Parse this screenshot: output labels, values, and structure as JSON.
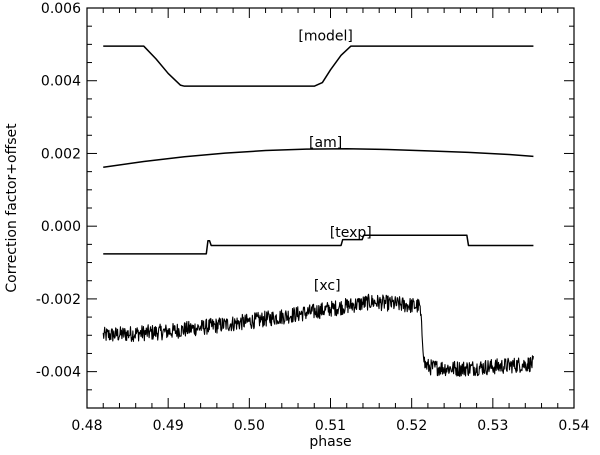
{
  "chart_data": {
    "type": "line",
    "title": "",
    "xlabel": "phase",
    "ylabel": "Correction factor+offset",
    "xlim": [
      0.48,
      0.54
    ],
    "ylim": [
      -0.005,
      0.006
    ],
    "grid": false,
    "legend": "none",
    "x_ticks": [
      0.48,
      0.49,
      0.5,
      0.51,
      0.52,
      0.53,
      0.54
    ],
    "x_tick_labels": [
      "0.48",
      "0.49",
      "0.50",
      "0.51",
      "0.52",
      "0.53",
      "0.54"
    ],
    "y_ticks": [
      -0.004,
      -0.002,
      0.0,
      0.002,
      0.004,
      0.006
    ],
    "y_tick_labels": [
      "-0.004",
      "-0.002",
      "0.000",
      "0.002",
      "0.004",
      "0.006"
    ],
    "line_color": "#000000",
    "series": [
      {
        "name": "[model]",
        "label_at": [
          0.5094,
          0.00525
        ],
        "points": [
          [
            0.482,
            0.00495
          ],
          [
            0.487,
            0.00495
          ],
          [
            0.4885,
            0.0046
          ],
          [
            0.49,
            0.0042
          ],
          [
            0.4915,
            0.00388
          ],
          [
            0.492,
            0.00385
          ],
          [
            0.508,
            0.00385
          ],
          [
            0.509,
            0.00395
          ],
          [
            0.51,
            0.0043
          ],
          [
            0.5113,
            0.0047
          ],
          [
            0.5125,
            0.00495
          ],
          [
            0.535,
            0.00495
          ]
        ]
      },
      {
        "name": "[am]",
        "label_at": [
          0.5094,
          0.00232
        ],
        "points": [
          [
            0.482,
            0.00162
          ],
          [
            0.487,
            0.00178
          ],
          [
            0.492,
            0.00191
          ],
          [
            0.497,
            0.00201
          ],
          [
            0.502,
            0.00208
          ],
          [
            0.507,
            0.00212
          ],
          [
            0.512,
            0.00213
          ],
          [
            0.517,
            0.00211
          ],
          [
            0.522,
            0.00207
          ],
          [
            0.527,
            0.00203
          ],
          [
            0.532,
            0.00197
          ],
          [
            0.535,
            0.00192
          ]
        ]
      },
      {
        "name": "[texp]",
        "label_at": [
          0.5125,
          -0.00016
        ],
        "points": [
          [
            0.482,
            -0.00076
          ],
          [
            0.4947,
            -0.00076
          ],
          [
            0.4949,
            -0.0004
          ],
          [
            0.4951,
            -0.0004
          ],
          [
            0.4953,
            -0.00053
          ],
          [
            0.5113,
            -0.00053
          ],
          [
            0.5115,
            -0.00037
          ],
          [
            0.5139,
            -0.00037
          ],
          [
            0.5141,
            -0.00025
          ],
          [
            0.5268,
            -0.00025
          ],
          [
            0.527,
            -0.00053
          ],
          [
            0.535,
            -0.00053
          ]
        ]
      },
      {
        "name": "[xc]",
        "label_at": [
          0.5096,
          -0.00162
        ],
        "noisy": true,
        "noise_amplitude": 0.00022,
        "points": [
          [
            0.482,
            -0.003
          ],
          [
            0.49,
            -0.0029
          ],
          [
            0.5,
            -0.00262
          ],
          [
            0.508,
            -0.00235
          ],
          [
            0.515,
            -0.00208
          ],
          [
            0.521,
            -0.0022
          ],
          [
            0.5216,
            -0.0038
          ],
          [
            0.5222,
            -0.00388
          ],
          [
            0.526,
            -0.00392
          ],
          [
            0.531,
            -0.00385
          ],
          [
            0.535,
            -0.00378
          ]
        ]
      }
    ]
  }
}
